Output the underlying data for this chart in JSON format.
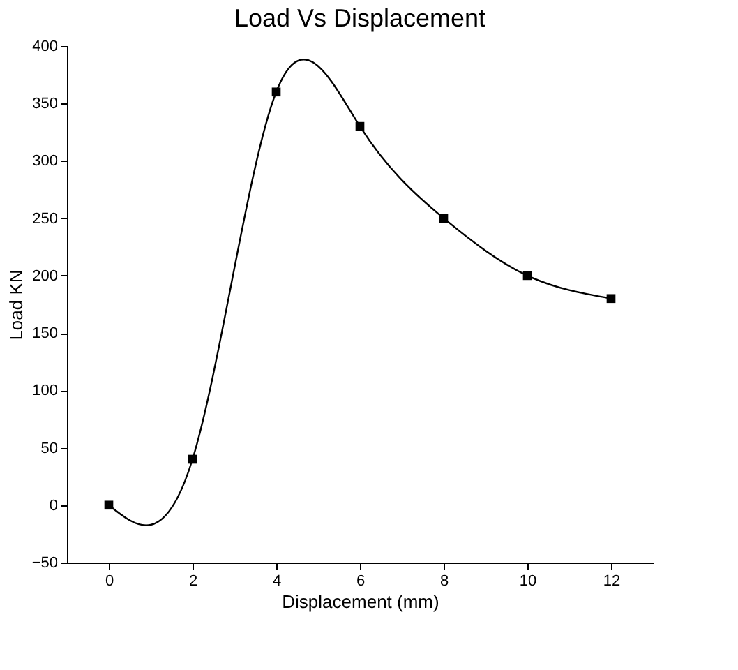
{
  "chart_data": {
    "type": "line",
    "title": "Load Vs Displacement",
    "xlabel": "Displacement (mm)",
    "ylabel": "Load KN",
    "x": [
      0,
      2,
      4,
      6,
      8,
      10,
      12
    ],
    "series": [
      {
        "color": "#000000",
        "values": [
          0,
          40,
          360,
          330,
          250,
          200,
          180
        ]
      }
    ],
    "xlim": [
      -1,
      13
    ],
    "xticks": [
      0,
      2,
      4,
      6,
      8,
      10,
      12
    ],
    "ylim": [
      -50,
      400
    ],
    "yticks": [
      -50,
      0,
      50,
      100,
      150,
      200,
      250,
      300,
      350,
      400
    ],
    "marker": "square",
    "line_style": "solid",
    "grid": false,
    "legend": false
  }
}
